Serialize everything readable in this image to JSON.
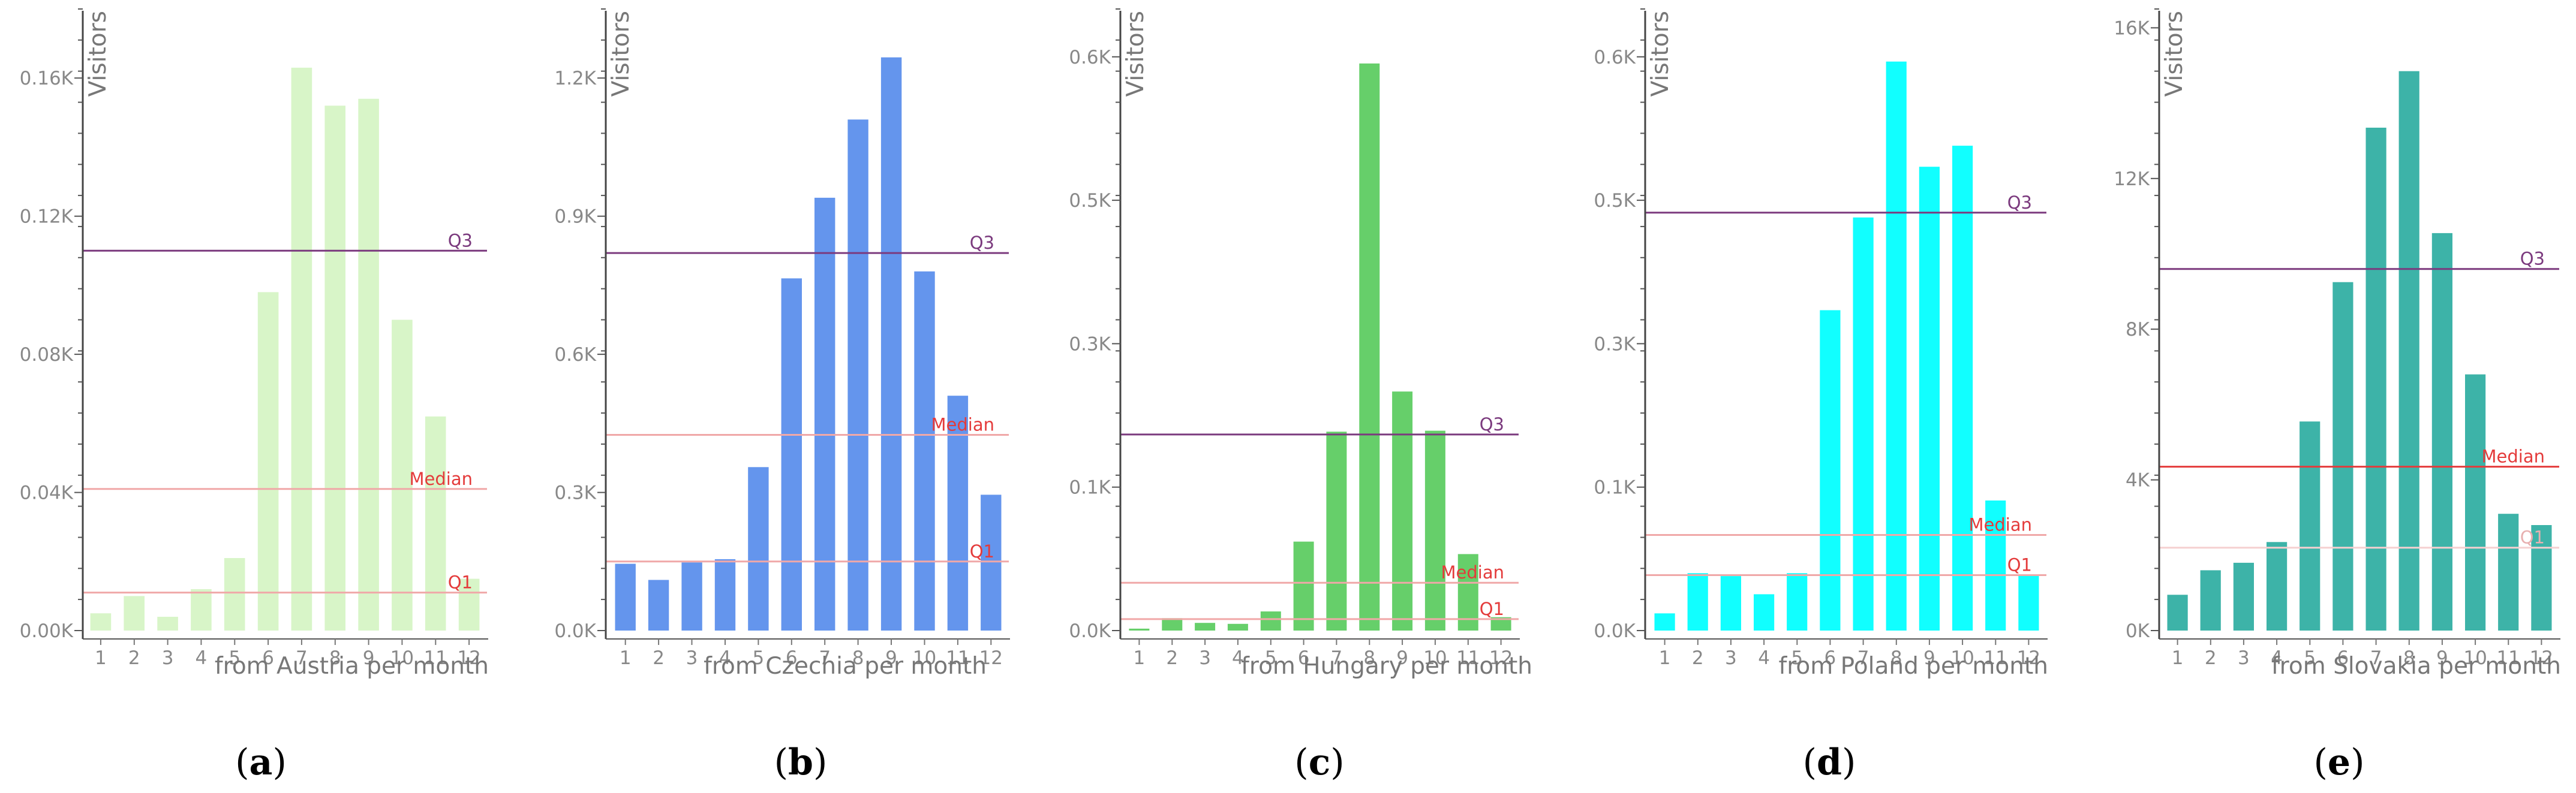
{
  "chart_data": [
    {
      "type": "bar",
      "panel": "(a)",
      "panel_letter": "a",
      "ylabel": "Visitors",
      "xlabel": "from Austria per month",
      "color": "#d8f5c8",
      "categories": [
        "1",
        "2",
        "3",
        "4",
        "5",
        "6",
        "7",
        "8",
        "9",
        "10",
        "11",
        "12"
      ],
      "values": [
        0.005,
        0.01,
        0.004,
        0.012,
        0.021,
        0.098,
        0.163,
        0.152,
        0.154,
        0.09,
        0.062,
        0.015
      ],
      "ylim": [
        0,
        0.18
      ],
      "yticks": [
        0,
        0.04,
        0.08,
        0.12,
        0.16
      ],
      "ytick_labels": [
        "0.00K",
        "0.04K",
        "0.08K",
        "0.12K",
        "0.16K"
      ],
      "reference_lines": [
        {
          "label": "Q3",
          "value": 0.11,
          "color": "#7b3a7e"
        },
        {
          "label": "Median",
          "value": 0.041,
          "color": "#f0a8a8",
          "label_color": "#e43b3b"
        },
        {
          "label": "Q1",
          "value": 0.011,
          "color": "#f0a8a8",
          "label_color": "#e43b3b"
        }
      ]
    },
    {
      "type": "bar",
      "panel": "(b)",
      "panel_letter": "b",
      "ylabel": "Visitors",
      "xlabel": "from Czechia per month",
      "color": "#6495ed",
      "categories": [
        "1",
        "2",
        "3",
        "4",
        "5",
        "6",
        "7",
        "8",
        "9",
        "10",
        "11",
        "12"
      ],
      "values": [
        0.145,
        0.11,
        0.148,
        0.155,
        0.355,
        0.765,
        0.94,
        1.11,
        1.245,
        0.78,
        0.51,
        0.295
      ],
      "ylim": [
        0,
        1.35
      ],
      "yticks": [
        0,
        0.3,
        0.6,
        0.9,
        1.2
      ],
      "ytick_labels": [
        "0.0K",
        "0.3K",
        "0.6K",
        "0.9K",
        "1.2K"
      ],
      "reference_lines": [
        {
          "label": "Q3",
          "value": 0.82,
          "color": "#7b3a7e"
        },
        {
          "label": "Median",
          "value": 0.425,
          "color": "#f0a8a8",
          "label_color": "#e43b3b"
        },
        {
          "label": "Q1",
          "value": 0.15,
          "color": "#f0a8a8",
          "label_color": "#e43b3b"
        }
      ]
    },
    {
      "type": "bar",
      "panel": "(c)",
      "panel_letter": "c",
      "ylabel": "Visitors",
      "xlabel": "from Hungary per month",
      "color": "#66cf6a",
      "categories": [
        "1",
        "2",
        "3",
        "4",
        "5",
        "6",
        "7",
        "8",
        "9",
        "10",
        "11",
        "12"
      ],
      "values": [
        0.002,
        0.013,
        0.008,
        0.007,
        0.02,
        0.093,
        0.208,
        0.593,
        0.25,
        0.209,
        0.08,
        0.014
      ],
      "ylim": [
        0,
        0.65
      ],
      "yticks": [
        0,
        0.15,
        0.3,
        0.45,
        0.6
      ],
      "ytick_labels": [
        "0.0K",
        "0.1K",
        "0.3K",
        "0.5K",
        "0.6K"
      ],
      "reference_lines": [
        {
          "label": "Q3",
          "value": 0.205,
          "color": "#7b3a7e"
        },
        {
          "label": "Median",
          "value": 0.05,
          "color": "#f0a8a8",
          "label_color": "#e43b3b"
        },
        {
          "label": "Q1",
          "value": 0.012,
          "color": "#f0a8a8",
          "label_color": "#e43b3b"
        }
      ]
    },
    {
      "type": "bar",
      "panel": "(d)",
      "panel_letter": "d",
      "ylabel": "Visitors",
      "xlabel": "from Poland per month",
      "color": "#11ffff",
      "categories": [
        "1",
        "2",
        "3",
        "4",
        "5",
        "6",
        "7",
        "8",
        "9",
        "10",
        "11",
        "12"
      ],
      "values": [
        0.018,
        0.06,
        0.057,
        0.038,
        0.06,
        0.335,
        0.432,
        0.595,
        0.485,
        0.507,
        0.136,
        0.058
      ],
      "ylim": [
        0,
        0.65
      ],
      "yticks": [
        0,
        0.15,
        0.3,
        0.45,
        0.6
      ],
      "ytick_labels": [
        "0.0K",
        "0.1K",
        "0.3K",
        "0.5K",
        "0.6K"
      ],
      "reference_lines": [
        {
          "label": "Q3",
          "value": 0.437,
          "color": "#7b3a7e"
        },
        {
          "label": "Median",
          "value": 0.1,
          "color": "#f0a8a8",
          "label_color": "#e43b3b"
        },
        {
          "label": "Q1",
          "value": 0.058,
          "color": "#f0a8a8",
          "label_color": "#e43b3b"
        }
      ]
    },
    {
      "type": "bar",
      "panel": "(e)",
      "panel_letter": "e",
      "ylabel": "Visitors",
      "xlabel": "from Slovakia per month",
      "color": "#3db3a8",
      "categories": [
        "1",
        "2",
        "3",
        "4",
        "5",
        "6",
        "7",
        "8",
        "9",
        "10",
        "11",
        "12"
      ],
      "values": [
        0.95,
        1.6,
        1.8,
        2.35,
        5.55,
        9.25,
        13.35,
        14.85,
        10.55,
        6.8,
        3.1,
        2.8
      ],
      "ylim": [
        0,
        16.5
      ],
      "yticks": [
        0,
        4,
        8,
        12,
        16
      ],
      "ytick_labels": [
        "0K",
        "4K",
        "8K",
        "12K",
        "16K"
      ],
      "reference_lines": [
        {
          "label": "Q3",
          "value": 9.6,
          "color": "#7b3a7e"
        },
        {
          "label": "Median",
          "value": 4.35,
          "color": "#e43b3b",
          "label_color": "#e43b3b"
        },
        {
          "label": "Q1",
          "value": 2.2,
          "color": "#f5d0d0",
          "label_color": "#e8b0b0"
        }
      ]
    }
  ]
}
